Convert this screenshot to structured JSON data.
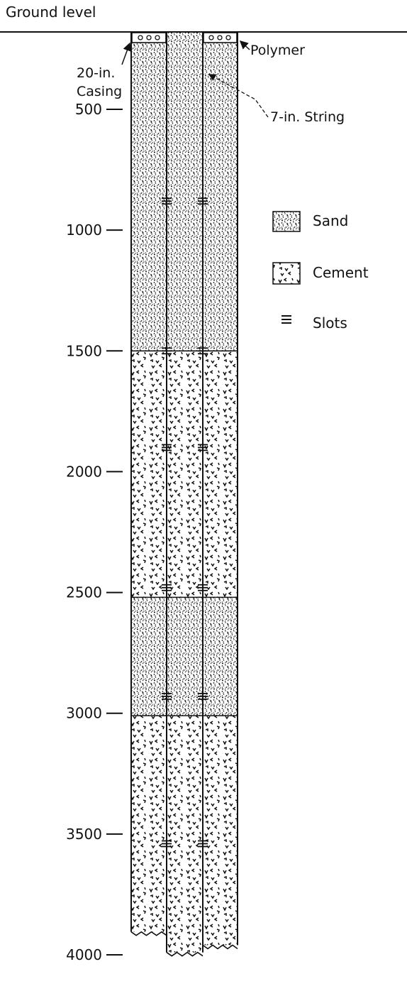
{
  "ground_label": "Ground level",
  "callouts": {
    "polymer": "Polymer",
    "casing_line1": "20-in.",
    "casing_line2": "Casing",
    "string": "7-in. String"
  },
  "depth_ticks": [
    "500",
    "1000",
    "1500",
    "2000",
    "2500",
    "3000",
    "3500",
    "4000"
  ],
  "legend": [
    {
      "key": "sand",
      "label": "Sand"
    },
    {
      "key": "cement",
      "label": "Cement"
    },
    {
      "key": "slots",
      "label": "Slots"
    }
  ],
  "layers": [
    {
      "material": "sand",
      "from": 0,
      "to": 1500
    },
    {
      "material": "cement",
      "from": 1500,
      "to": 2520
    },
    {
      "material": "sand",
      "from": 2520,
      "to": 3010
    },
    {
      "material": "cement",
      "from": 3010,
      "to": 4000
    }
  ],
  "slot_depths": [
    880,
    1500,
    1900,
    2480,
    2930,
    3540
  ],
  "colors": {
    "ink": "#111111",
    "background": "#ffffff"
  }
}
